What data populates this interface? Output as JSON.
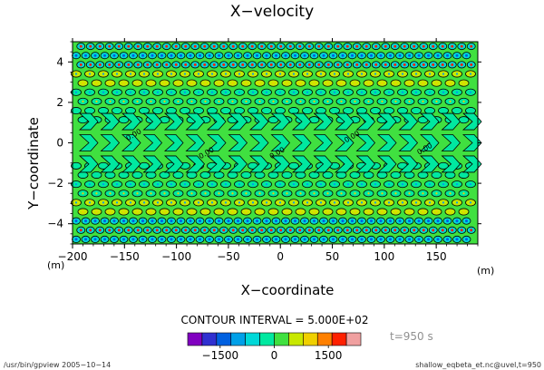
{
  "chart_data": {
    "type": "heatmap",
    "title": "X−velocity",
    "xlabel": "X−coordinate",
    "ylabel": "Y−coordinate",
    "x_unit": "(m)",
    "y_unit": "(m)",
    "xlim": [
      -200,
      190
    ],
    "ylim": [
      -5,
      5
    ],
    "x_ticks": [
      -200,
      -150,
      -100,
      -50,
      0,
      50,
      100,
      150
    ],
    "x_tick_labels": [
      "−200",
      "−150",
      "−100",
      "−50",
      "0",
      "50",
      "100",
      "150"
    ],
    "y_ticks": [
      -4,
      -2,
      0,
      2,
      4
    ],
    "y_tick_labels": [
      "−4",
      "−2",
      "0",
      "2",
      "4"
    ],
    "contour_interval_text": "CONTOUR INTERVAL = 5.000E+02",
    "contour_labels": [
      "0.00",
      "0.00",
      "0.00",
      "0.00",
      "0.00"
    ],
    "colorbar": {
      "levels": [
        -2000,
        -1500,
        -1000,
        -500,
        0,
        500,
        1000,
        1500,
        2000
      ],
      "tick_labels": [
        "−1500",
        "0",
        "1500"
      ],
      "colors": [
        "#8000c0",
        "#3030d0",
        "#0060e0",
        "#00a0e8",
        "#00d8d8",
        "#00e8a0",
        "#40e040",
        "#c8e800",
        "#f0d000",
        "#ff8000",
        "#ff2000",
        "#f0a0a0"
      ]
    },
    "background_color": "#40e040",
    "time_label": "t=950 s"
  },
  "footer": {
    "left": "/usr/bin/gpview   2005−10−14",
    "right": "shallow_eqbeta_et.nc@uvel,t=950"
  }
}
